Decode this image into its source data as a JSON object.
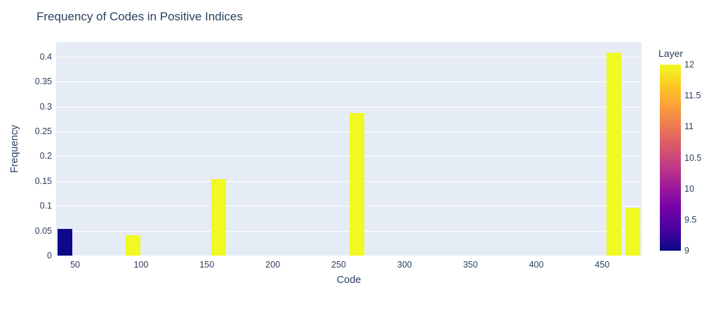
{
  "title": "Frequency of Codes in Positive Indices",
  "colors": {
    "text": "#2a3f5f",
    "plot_background": "#e5ecf6",
    "gridline": "#ffffff",
    "page_background": "#ffffff"
  },
  "chart_data": {
    "type": "bar",
    "title": "Frequency of Codes in Positive Indices",
    "xlabel": "Code",
    "ylabel": "Frequency",
    "x": [
      42,
      94,
      159,
      264,
      459,
      473
    ],
    "values": [
      0.053,
      0.041,
      0.154,
      0.287,
      0.408,
      0.096
    ],
    "layers": [
      9,
      12,
      12,
      12,
      12,
      12
    ],
    "bar_width": 11.2,
    "xlim": [
      35.6,
      479.9
    ],
    "ylim": [
      0,
      0.4294
    ],
    "x_ticks": [
      50,
      100,
      150,
      200,
      250,
      300,
      350,
      400,
      450
    ],
    "y_ticks": [
      0,
      0.05,
      0.1,
      0.15,
      0.2,
      0.25,
      0.3,
      0.35,
      0.4
    ],
    "grid": "on",
    "legend_position": "right",
    "layer_colors": {
      "9": "#0d0887",
      "12": "#f0f921"
    },
    "colorbar": {
      "title": "Layer",
      "min": 9,
      "max": 12,
      "ticks": [
        12,
        11.5,
        11,
        10.5,
        10,
        9.5,
        9
      ],
      "colorscale": "Plasma",
      "colorscale_stops": [
        "#0d0887",
        "#46039f",
        "#7201a8",
        "#9c179e",
        "#bd3786",
        "#d8576b",
        "#ed7953",
        "#fb9f3a",
        "#fdca26",
        "#f0f921"
      ]
    }
  }
}
